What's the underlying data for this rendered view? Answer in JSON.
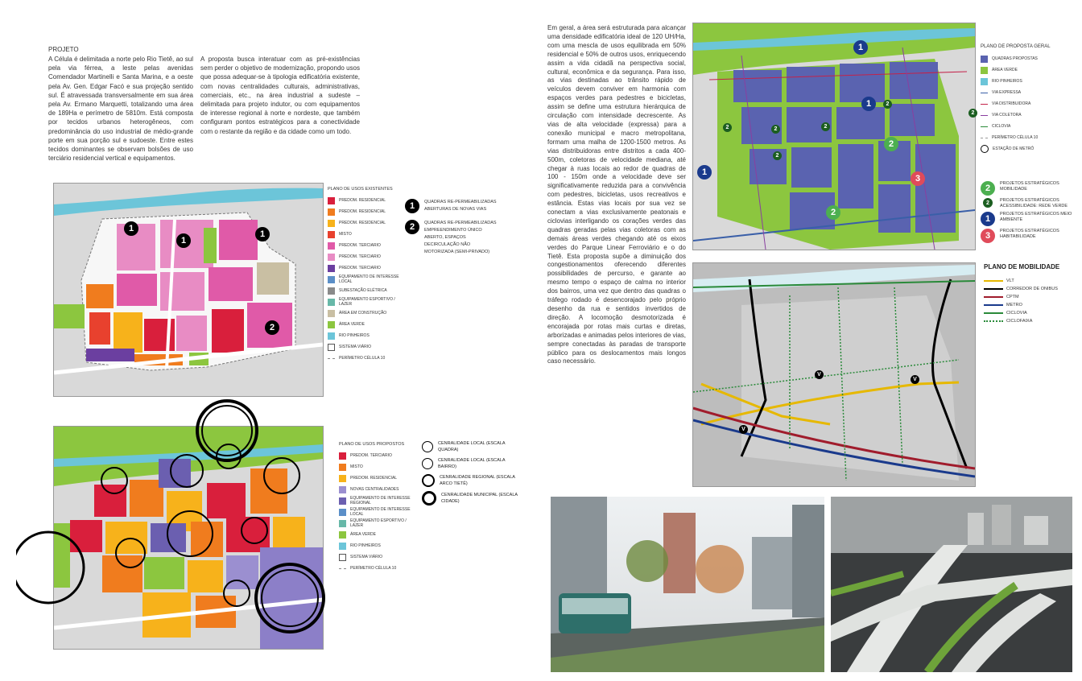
{
  "left_text": {
    "heading": "PROJETO",
    "col1": "A Célula é delimitada a norte pelo Rio Tietê, ao sul pela via férrea, a leste pelas avenidas Comendador Martinelli e Santa Marina, e a oeste pela Av. Gen. Edgar Facó e sua projeção sentido sul. É atravessada transversalmente em sua área pela Av. Ermano Marquetti, totalizando uma área de 189Ha e perímetro de 5810m. Está composta por tecidos urbanos heterogêneos, com predominância do uso industrial de médio-grande porte em sua porção sul e sudoeste. Entre estes tecidos dominantes se observam bolsões de uso terciário residencial vertical e equipamentos.",
    "col2": "A proposta busca interatuar com as pré-existências sem perder o objetivo de modernização, propondo usos que possa adequar-se à tipologia edificatória existente, com novas centralidades culturais, administrativas, comerciais, etc., na área industrial a sudeste – delimitada para projeto indutor, ou com equipamentos de interesse regional à norte e nordeste, que também configuram pontos estratégicos para a conectividade com o restante da região e da cidade como um todo."
  },
  "right_text": "Em geral, a área será estruturada para alcançar uma densidade edificatória ideal de 120 UH/Ha, com uma mescla de usos equilibrada em 50% residencial e 50% de outros usos, enriquecendo assim a vida cidadã na perspectiva social, cultural, econômica e da segurança. Para isso, as vias destinadas ao trânsito rápido de veículos devem conviver em harmonia com espaços verdes para pedestres e bicicletas, assim se define uma estrutura hierárquica de circulação com intensidade decrescente. As vias de alta velocidade (expressa) para a conexão municipal e macro metropolitana, formam uma malha de 1200-1500 metros. As vias distribuidoras entre distritos a cada 400-500m, coletoras de velocidade mediana, até chegar à ruas locais ao redor de quadras de 100 - 150m onde a velocidade deve ser significativamente reduzida para a convivência com pedestres, bicicletas, usos recreativos e estância. Estas vias locais por sua vez se conectam a vias exclusivamente peatonais e ciclovias interligando os corações verdes das quadras geradas pelas vias coletoras com as demais áreas verdes chegando até os eixos verdes do Parque Linear Ferroviário e o do Tietê. Esta proposta supõe a diminuição dos congestionamentos oferecendo diferentes possibilidades de percurso, e garante ao mesmo tempo o espaço de calma no interior dos bairros, uma vez que dentro das quadras o tráfego rodado é desencorajado pelo próprio desenho da rua e sentidos invertidos de direção. A locomoção desmotorizada é encorajada por rotas mais curtas e diretas, arborizadas e animadas pelos interiores de vias, sempre conectadas às paradas de transporte público para os deslocamentos mais longos caso necessário.",
  "existing_legend": {
    "title": "PLANO DE USOS EXISTENTES",
    "items": [
      {
        "label": "PREDOM. RESIDENCIAL",
        "color": "#d91f3c"
      },
      {
        "label": "PREDOM. RESIDENCIAL",
        "color": "#f07c1e"
      },
      {
        "label": "PREDOM. RESIDENCIAL",
        "color": "#f7b21b"
      },
      {
        "label": "MISTO",
        "color": "#e8412e"
      },
      {
        "label": "PREDOM. TERCIARIO",
        "color": "#e05aa8"
      },
      {
        "label": "PREDOM. TERCIARIO",
        "color": "#e88cc4"
      },
      {
        "label": "PREDOM. TERCIARIO",
        "color": "#6b3fa0"
      },
      {
        "label": "EQUIPAMENTO DE INTERESSE LOCAL",
        "color": "#5b8fc8"
      },
      {
        "label": "SUBESTAÇÃO ELÉTRICA",
        "color": "#8a8a8a"
      },
      {
        "label": "EQUIPAMENTO ESPORTIVO / LAZER",
        "color": "#67b8a8"
      },
      {
        "label": "ÁREA EM CONSTRUÇÃO",
        "color": "#c9bfa3"
      },
      {
        "label": "ÁREA VERDE",
        "color": "#8cc63f"
      },
      {
        "label": "RIO PINHEIROS",
        "color": "#6cc5d9"
      },
      {
        "label": "SISTEMA VIÁRIO",
        "color": "#ffffff"
      },
      {
        "label": "PERÍMETRO CÉLULA 10",
        "color": "#888888"
      }
    ]
  },
  "existing_numbered": [
    {
      "num": "1",
      "text": "QUADRAS RE-PERMEABILIZADAS ABERTURAS DE NOVAS VIAS"
    },
    {
      "num": "2",
      "text": "QUADRAS RE-PERMEABILIZADAS EMPREENDIMENTO ÚNICO ABERTO, ESPAÇOS DECIRCULAÇÃO NÃO MOTORIZADA (SEMI-PRIVADO)"
    }
  ],
  "proposed_legend": {
    "title": "PLANO DE USOS PROPOSTOS",
    "items": [
      {
        "label": "PREDOM. TERCIARIO",
        "color": "#d91f3c"
      },
      {
        "label": "MISTO",
        "color": "#f07c1e"
      },
      {
        "label": "PREDOM. RESIDENCIAL",
        "color": "#f7b21b"
      },
      {
        "label": "NOVAS CENTRALIDADES",
        "color": "#9b8fd0"
      },
      {
        "label": "EQUIPAMENTO DE INTERESSE REGIONAL",
        "color": "#6b5fb0"
      },
      {
        "label": "EQUIPAMENTO DE INTERESSE LOCAL",
        "color": "#5b8fc8"
      },
      {
        "label": "EQUIPAMENTO ESPORTIVO / LAZER",
        "color": "#67b8a8"
      },
      {
        "label": "ÁREA VERDE",
        "color": "#8cc63f"
      },
      {
        "label": "RIO PINHEIROS",
        "color": "#6cc5d9"
      },
      {
        "label": "SISTEMA VIÁRIO",
        "color": "#ffffff"
      },
      {
        "label": "PERÍMETRO CÉLULA 10",
        "color": "#888888"
      }
    ]
  },
  "centralidades": [
    {
      "label": "CENRALIDADE LOCAL (ESCALA QUADRA)"
    },
    {
      "label": "CENRALIDADE LOCAL (ESCALA BAIRRO)"
    },
    {
      "label": "CENRALIDADE REGIONAL (ESCALA ARCO TIETÊ)"
    },
    {
      "label": "CENRALIDADE MUNICIPAL (ESCALA CIDADE)"
    }
  ],
  "general_legend": {
    "title": "PLANO DE PROPOSTA GERAL",
    "items": [
      {
        "label": "QUADRAS PROPOSTAS",
        "color": "#5a63b0",
        "kind": "box"
      },
      {
        "label": "ÁREA VERDE",
        "color": "#8cc63f",
        "kind": "box"
      },
      {
        "label": "RIO PINHEIROS",
        "color": "#6cc5d9",
        "kind": "box"
      },
      {
        "label": "VIA EXPRESSA",
        "color": "#3a5fa8",
        "kind": "line"
      },
      {
        "label": "VIA DISTRIBUIDORA",
        "color": "#c4224a",
        "kind": "line"
      },
      {
        "label": "VIA COLETORA",
        "color": "#8a3fa0",
        "kind": "line"
      },
      {
        "label": "CICLOVIA",
        "color": "#2a8a3a",
        "kind": "line"
      },
      {
        "label": "PERÍMETRO CÉLULA 10",
        "color": "#999999",
        "kind": "line"
      },
      {
        "label": "ESTAÇÃO DE METRÔ",
        "color": "#000000",
        "kind": "ring"
      }
    ],
    "projects": [
      {
        "num": "2",
        "color": "#4caf50",
        "text": "PROJETOS ESTRATÉGICOS MOBILIDADE"
      },
      {
        "num": "2",
        "color": "#1b5e20",
        "text": "PROJETOS ESTRATÉGICOS ACESSIBILIDADE: REDE VERDE"
      },
      {
        "num": "1",
        "color": "#1a3a8c",
        "text": "PROJETOS ESTRATÉGICOS MEIO AMBIENTE"
      },
      {
        "num": "3",
        "color": "#e04b5a",
        "text": "PROJETOS ESTRATÉGICOS HABITABILIDADE"
      }
    ]
  },
  "mobility": {
    "title": "PLANO DE MOBILIDADE",
    "items": [
      {
        "label": "VLT",
        "color": "#e6b800"
      },
      {
        "label": "CORREDOR DE ONIBUS",
        "color": "#000000"
      },
      {
        "label": "CPTM",
        "color": "#a01c2c"
      },
      {
        "label": "METRO",
        "color": "#1a3a8c"
      },
      {
        "label": "CICLOVIA",
        "color": "#2a8a3a"
      },
      {
        "label": "CICLOFAIXA",
        "color": "#2a8a3a"
      }
    ]
  },
  "map_markers": {
    "existing": [
      "1",
      "1",
      "1",
      "2"
    ],
    "general": [
      "1",
      "2",
      "2",
      "2",
      "2",
      "2",
      "1",
      "1",
      "2",
      "2",
      "2",
      "3",
      "1"
    ],
    "mobility": [
      "V",
      "V",
      "V"
    ]
  }
}
